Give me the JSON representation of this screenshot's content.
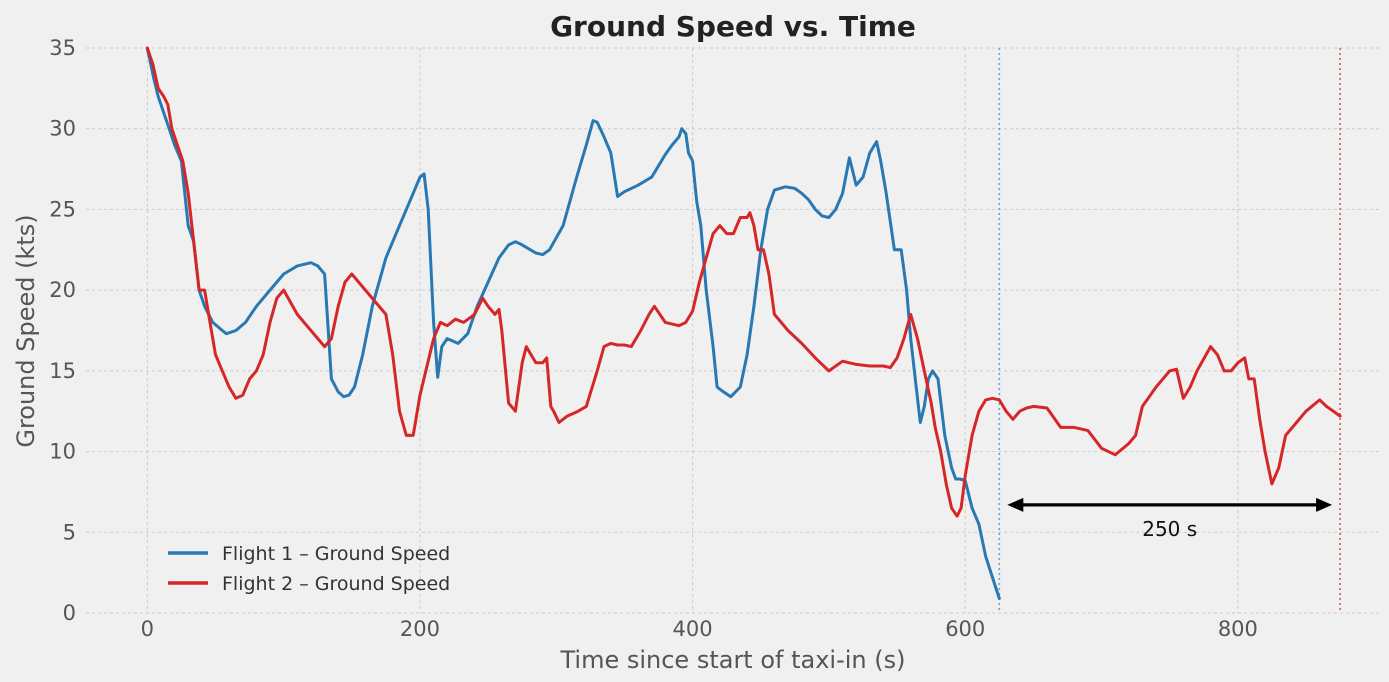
{
  "chart_data": {
    "type": "line",
    "title": "Ground Speed vs. Time",
    "xlabel": "Time since start of taxi-in (s)",
    "ylabel": "Ground Speed (kts)",
    "xlim": [
      -45,
      905
    ],
    "ylim": [
      0,
      35
    ],
    "xticks": [
      0,
      200,
      400,
      600,
      800
    ],
    "yticks": [
      0,
      5,
      10,
      15,
      20,
      25,
      30,
      35
    ],
    "grid": true,
    "legend_position": "lower-left",
    "series": [
      {
        "name": "Flight 1 – Ground Speed",
        "color": "#2878b4",
        "x": [
          0,
          5,
          8,
          12,
          16,
          20,
          25,
          30,
          34,
          38,
          42,
          48,
          55,
          58,
          65,
          72,
          80,
          90,
          100,
          110,
          120,
          125,
          130,
          135,
          140,
          144,
          148,
          152,
          158,
          165,
          175,
          185,
          195,
          200,
          203,
          206,
          210,
          213,
          216,
          220,
          228,
          235,
          242,
          250,
          258,
          265,
          270,
          275,
          285,
          290,
          295,
          305,
          315,
          322,
          327,
          330,
          335,
          340,
          345,
          350,
          360,
          370,
          375,
          380,
          385,
          390,
          392,
          395,
          397,
          400,
          403,
          406,
          410,
          415,
          418,
          421,
          428,
          435,
          440,
          445,
          450,
          455,
          460,
          468,
          475,
          480,
          485,
          490,
          495,
          500,
          505,
          510,
          515,
          520,
          525,
          530,
          535,
          538,
          542,
          548,
          553,
          557,
          560,
          564,
          567,
          570,
          573,
          576,
          580,
          585,
          590,
          593,
          596,
          600,
          605,
          610,
          615,
          620,
          625
        ],
        "values": [
          35,
          33,
          32,
          31,
          30,
          29,
          28,
          24,
          23,
          20,
          19,
          18,
          17.5,
          17.3,
          17.5,
          18,
          19,
          20,
          21,
          21.5,
          21.7,
          21.5,
          21,
          14.5,
          13.7,
          13.4,
          13.5,
          14,
          16,
          19,
          22,
          24,
          26,
          27,
          27.2,
          25,
          18,
          14.6,
          16.5,
          17,
          16.7,
          17.3,
          19,
          20.5,
          22,
          22.8,
          23,
          22.8,
          22.3,
          22.2,
          22.5,
          24,
          27,
          29,
          30.5,
          30.4,
          29.5,
          28.5,
          25.8,
          26.1,
          26.5,
          27,
          27.7,
          28.4,
          29,
          29.5,
          30,
          29.7,
          28.5,
          28,
          25.5,
          24,
          20,
          16.5,
          14,
          13.8,
          13.4,
          14,
          16,
          19,
          22.5,
          25,
          26.2,
          26.4,
          26.3,
          26,
          25.6,
          25,
          24.6,
          24.5,
          25,
          26,
          28.2,
          26.5,
          27,
          28.5,
          29.2,
          28,
          26,
          22.5,
          22.5,
          20,
          17,
          14,
          11.8,
          12.8,
          14.5,
          15,
          14.5,
          11,
          9,
          8.3,
          8.3,
          8.2,
          6.5,
          5.5,
          3.5,
          2.2,
          0.9
        ]
      },
      {
        "name": "Flight 2 – Ground Speed",
        "color": "#d62728",
        "x": [
          0,
          4,
          8,
          12,
          15,
          18,
          22,
          26,
          30,
          34,
          38,
          42,
          46,
          50,
          55,
          60,
          65,
          70,
          75,
          80,
          85,
          90,
          95,
          100,
          110,
          120,
          130,
          135,
          140,
          145,
          150,
          160,
          170,
          175,
          180,
          185,
          190,
          195,
          200,
          210,
          215,
          220,
          226,
          232,
          240,
          246,
          250,
          255,
          258,
          260,
          265,
          270,
          275,
          278,
          285,
          290,
          293,
          296,
          298,
          302,
          308,
          316,
          322,
          330,
          335,
          340,
          345,
          350,
          355,
          362,
          368,
          372,
          380,
          390,
          395,
          400,
          405,
          410,
          415,
          420,
          425,
          430,
          435,
          440,
          442,
          445,
          448,
          452,
          456,
          460,
          465,
          470,
          480,
          490,
          500,
          510,
          520,
          530,
          540,
          545,
          550,
          555,
          560,
          565,
          570,
          575,
          578,
          582,
          586,
          590,
          594,
          597,
          600,
          605,
          610,
          615,
          620,
          625,
          630,
          635,
          640,
          645,
          650,
          660,
          670,
          680,
          690,
          700,
          710,
          720,
          725,
          730,
          740,
          750,
          755,
          760,
          765,
          770,
          780,
          785,
          790,
          795,
          800,
          805,
          808,
          812,
          816,
          820,
          825,
          830,
          835,
          840,
          850,
          860,
          865,
          870,
          875
        ],
        "values": [
          35,
          34,
          32.5,
          32,
          31.5,
          30,
          29,
          28,
          26,
          23,
          20,
          20,
          18,
          16,
          15,
          14,
          13.3,
          13.5,
          14.5,
          15,
          16,
          18,
          19.5,
          20,
          18.5,
          17.5,
          16.5,
          17,
          19,
          20.5,
          21,
          20,
          19,
          18.5,
          16,
          12.5,
          11,
          11,
          13.5,
          17,
          18,
          17.8,
          18.2,
          18,
          18.5,
          19.5,
          19,
          18.5,
          18.8,
          17.5,
          13,
          12.5,
          15.5,
          16.5,
          15.5,
          15.5,
          15.8,
          12.8,
          12.5,
          11.8,
          12.2,
          12.5,
          12.8,
          15,
          16.5,
          16.7,
          16.6,
          16.6,
          16.5,
          17.5,
          18.5,
          19,
          18,
          17.8,
          18,
          18.7,
          20.5,
          22,
          23.5,
          24,
          23.5,
          23.5,
          24.5,
          24.5,
          24.8,
          24,
          22.5,
          22.5,
          21,
          18.5,
          18,
          17.5,
          16.7,
          15.8,
          15,
          15.6,
          15.4,
          15.3,
          15.3,
          15.2,
          15.8,
          17,
          18.5,
          17,
          15,
          13,
          11.5,
          10,
          8,
          6.5,
          6,
          6.5,
          8.5,
          11,
          12.5,
          13.2,
          13.3,
          13.2,
          12.5,
          12,
          12.5,
          12.7,
          12.8,
          12.7,
          11.5,
          11.5,
          11.3,
          10.2,
          9.8,
          10.5,
          11,
          12.8,
          14,
          15,
          15.1,
          13.3,
          14,
          15,
          16.5,
          16,
          15,
          15,
          15.5,
          15.8,
          14.5,
          14.5,
          12,
          10,
          8,
          9,
          11,
          11.5,
          12.5,
          13.2,
          12.8,
          12.5,
          12.2
        ]
      }
    ],
    "vlines": [
      {
        "x": 625,
        "color": "#6a9fd8"
      },
      {
        "x": 875,
        "color": "#e05a5a"
      }
    ],
    "annotation": {
      "label": "250 s",
      "x_start": 625,
      "x_end": 875,
      "y": 6.7
    }
  }
}
